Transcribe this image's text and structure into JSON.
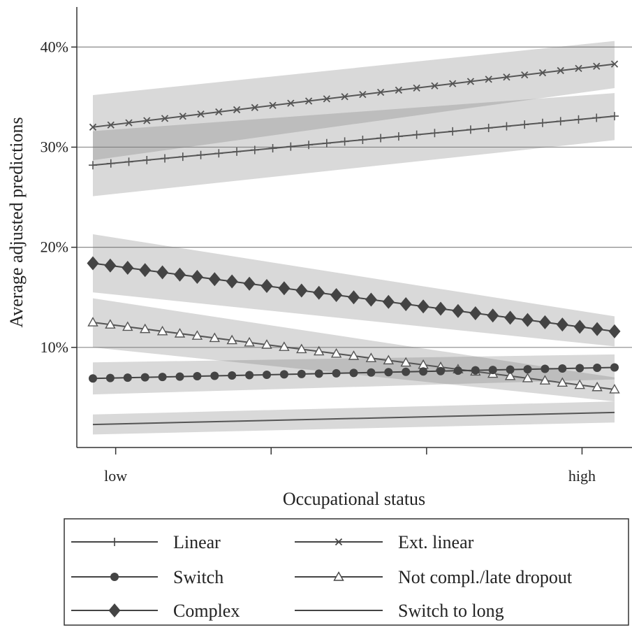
{
  "chart_data": {
    "type": "line",
    "ylabel": "Average adjusted predictions",
    "xlabel": "Occupational status",
    "xlim": [
      0,
      1
    ],
    "ylim": [
      0,
      44
    ],
    "yticks": [
      {
        "value": 10,
        "label": "10%"
      },
      {
        "value": 20,
        "label": "20%"
      },
      {
        "value": 30,
        "label": "30%"
      },
      {
        "value": 40,
        "label": "40%"
      }
    ],
    "xtick_positions": [
      0.07,
      0.35,
      0.63,
      0.91
    ],
    "xtick_labels": [
      {
        "value": 0.07,
        "label": "low"
      },
      {
        "value": 0.91,
        "label": "high"
      }
    ],
    "grid": "horizontal",
    "series": [
      {
        "name": "Ext. linear",
        "marker": "x",
        "color": "#555555",
        "start": 32.0,
        "end": 38.3,
        "ci_lo": [
          28.7,
          35.9
        ],
        "ci_hi": [
          35.2,
          40.6
        ]
      },
      {
        "name": "Linear",
        "marker": "+",
        "color": "#555555",
        "start": 28.2,
        "end": 33.1,
        "ci_lo": [
          25.1,
          30.7
        ],
        "ci_hi": [
          31.6,
          35.4
        ]
      },
      {
        "name": "Complex",
        "marker": "diamond",
        "color": "#444444",
        "start": 18.4,
        "end": 11.6,
        "ci_lo": [
          15.5,
          10.1
        ],
        "ci_hi": [
          21.3,
          13.1
        ]
      },
      {
        "name": "Not compl./late dropout",
        "marker": "triangle",
        "color": "#555555",
        "start": 12.5,
        "end": 5.8,
        "ci_lo": [
          10.0,
          4.6
        ],
        "ci_hi": [
          14.9,
          7.0
        ]
      },
      {
        "name": "Switch",
        "marker": "circle",
        "color": "#444444",
        "start": 6.9,
        "end": 8.0,
        "ci_lo": [
          5.3,
          6.8
        ],
        "ci_hi": [
          8.5,
          9.3
        ]
      },
      {
        "name": "Switch to long",
        "marker": "none",
        "color": "#555555",
        "start": 2.3,
        "end": 3.5,
        "ci_lo": [
          1.3,
          2.5
        ],
        "ci_hi": [
          3.3,
          4.6
        ]
      }
    ],
    "legend": {
      "placement": "bottom",
      "entries": [
        {
          "label": "Linear",
          "marker": "+"
        },
        {
          "label": "Ext. linear",
          "marker": "x"
        },
        {
          "label": "Switch",
          "marker": "circle"
        },
        {
          "label": "Not compl./late dropout",
          "marker": "triangle"
        },
        {
          "label": "Complex",
          "marker": "diamond"
        },
        {
          "label": "Switch to long",
          "marker": "none"
        }
      ]
    }
  }
}
